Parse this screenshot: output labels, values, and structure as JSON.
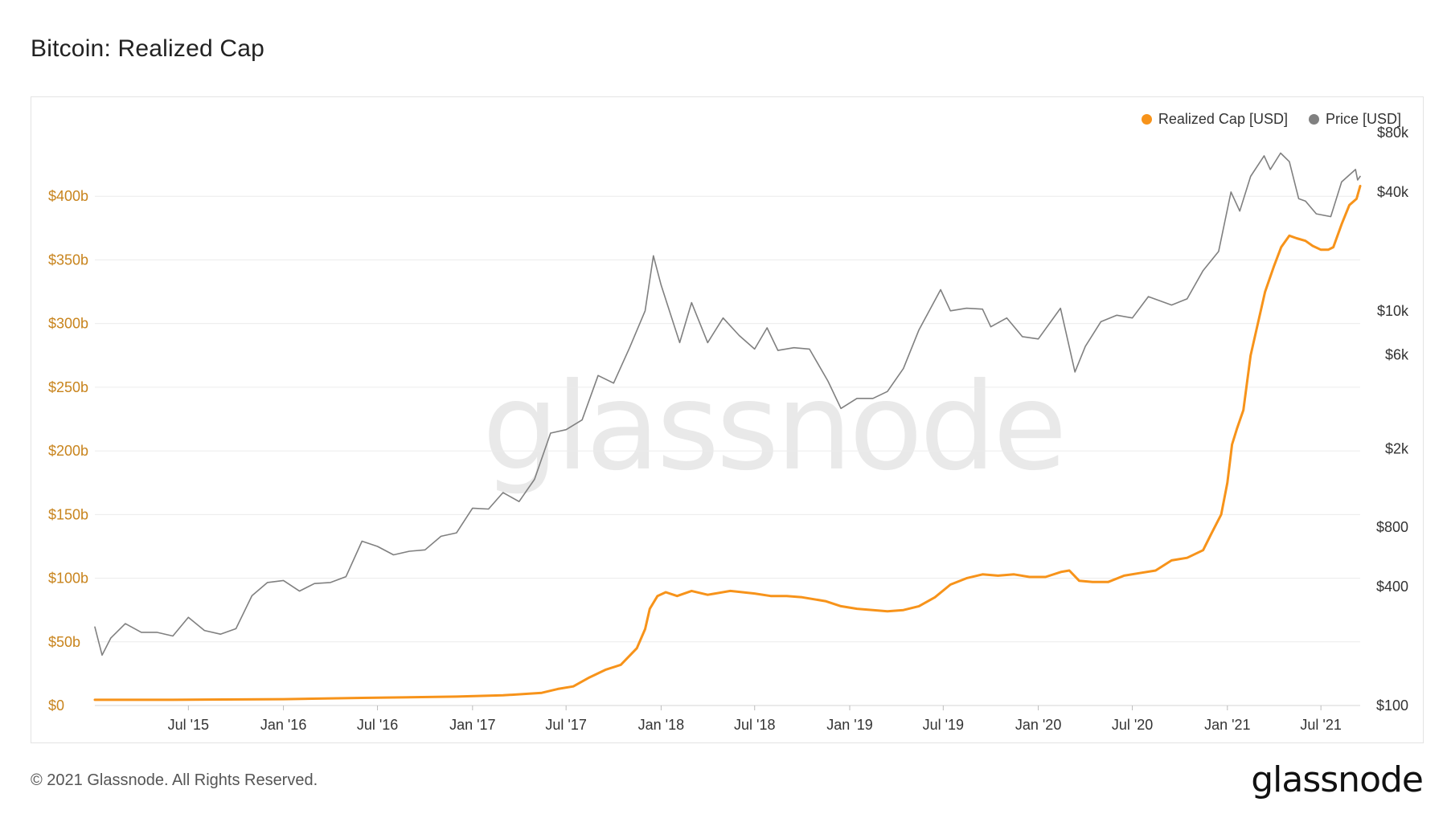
{
  "title": "Bitcoin: Realized Cap",
  "watermark": "glassnode",
  "footer": {
    "copyright": "© 2021 Glassnode. All Rights Reserved.",
    "brand": "glassnode"
  },
  "colors": {
    "realized_cap": "#f7931a",
    "price": "#808080",
    "left_axis_text": "#c8841d",
    "grid": "#ececec"
  },
  "chart_data": {
    "type": "line",
    "legend_position": "top-right",
    "grid": true,
    "x_ticks": [
      "Jul '15",
      "Jan '16",
      "Jul '16",
      "Jan '17",
      "Jul '17",
      "Jan '18",
      "Jul '18",
      "Jan '19",
      "Jul '19",
      "Jan '20",
      "Jul '20",
      "Jan '21",
      "Jul '21"
    ],
    "x_tick_dates": [
      "2015-07-01",
      "2016-01-01",
      "2016-07-01",
      "2017-01-01",
      "2017-07-01",
      "2018-01-01",
      "2018-07-01",
      "2019-01-01",
      "2019-07-01",
      "2020-01-01",
      "2020-07-01",
      "2021-01-01",
      "2021-07-01"
    ],
    "xlim": [
      "2015-01-01",
      "2021-09-15"
    ],
    "y_left": {
      "scale": "linear",
      "ylim": [
        0,
        450
      ],
      "ticks": [
        0,
        50,
        100,
        150,
        200,
        250,
        300,
        350,
        400
      ],
      "tick_labels": [
        "$0",
        "$50b",
        "$100b",
        "$150b",
        "$200b",
        "$250b",
        "$300b",
        "$350b",
        "$400b"
      ]
    },
    "y_right": {
      "scale": "log",
      "ylim": [
        100,
        80000
      ],
      "ticks": [
        100,
        400,
        800,
        2000,
        6000,
        10000,
        40000,
        80000
      ],
      "tick_labels": [
        "$100",
        "$400",
        "$800",
        "$2k",
        "$6k",
        "$10k",
        "$40k",
        "$80k"
      ]
    },
    "series": [
      {
        "name": "Realized Cap [USD]",
        "axis": "left",
        "color": "#f7931a",
        "points": [
          [
            "2015-01-01",
            4.5
          ],
          [
            "2015-06-01",
            4.5
          ],
          [
            "2016-01-01",
            5
          ],
          [
            "2016-06-01",
            6
          ],
          [
            "2016-12-01",
            7
          ],
          [
            "2017-03-01",
            8
          ],
          [
            "2017-05-15",
            10
          ],
          [
            "2017-06-15",
            13
          ],
          [
            "2017-07-15",
            15
          ],
          [
            "2017-08-15",
            22
          ],
          [
            "2017-09-15",
            28
          ],
          [
            "2017-10-15",
            32
          ],
          [
            "2017-11-15",
            45
          ],
          [
            "2017-12-01",
            60
          ],
          [
            "2017-12-10",
            76
          ],
          [
            "2017-12-25",
            86
          ],
          [
            "2018-01-10",
            89
          ],
          [
            "2018-02-01",
            86
          ],
          [
            "2018-03-01",
            90
          ],
          [
            "2018-04-01",
            87
          ],
          [
            "2018-05-15",
            90
          ],
          [
            "2018-07-01",
            88
          ],
          [
            "2018-08-01",
            86
          ],
          [
            "2018-09-01",
            86
          ],
          [
            "2018-10-01",
            85
          ],
          [
            "2018-11-15",
            82
          ],
          [
            "2018-12-15",
            78
          ],
          [
            "2019-01-15",
            76
          ],
          [
            "2019-02-15",
            75
          ],
          [
            "2019-03-15",
            74
          ],
          [
            "2019-04-15",
            75
          ],
          [
            "2019-05-15",
            78
          ],
          [
            "2019-06-15",
            85
          ],
          [
            "2019-07-15",
            95
          ],
          [
            "2019-08-15",
            100
          ],
          [
            "2019-09-15",
            103
          ],
          [
            "2019-10-15",
            102
          ],
          [
            "2019-11-15",
            103
          ],
          [
            "2019-12-15",
            101
          ],
          [
            "2020-01-15",
            101
          ],
          [
            "2020-02-15",
            105
          ],
          [
            "2020-03-01",
            106
          ],
          [
            "2020-03-20",
            98
          ],
          [
            "2020-04-15",
            97
          ],
          [
            "2020-05-15",
            97
          ],
          [
            "2020-06-15",
            102
          ],
          [
            "2020-07-15",
            104
          ],
          [
            "2020-08-15",
            106
          ],
          [
            "2020-09-15",
            114
          ],
          [
            "2020-10-15",
            116
          ],
          [
            "2020-11-15",
            122
          ],
          [
            "2020-12-01",
            135
          ],
          [
            "2020-12-20",
            150
          ],
          [
            "2021-01-01",
            175
          ],
          [
            "2021-01-10",
            205
          ],
          [
            "2021-01-20",
            218
          ],
          [
            "2021-02-01",
            232
          ],
          [
            "2021-02-15",
            275
          ],
          [
            "2021-03-01",
            300
          ],
          [
            "2021-03-15",
            325
          ],
          [
            "2021-04-01",
            345
          ],
          [
            "2021-04-15",
            360
          ],
          [
            "2021-05-01",
            369
          ],
          [
            "2021-05-15",
            367
          ],
          [
            "2021-06-01",
            365
          ],
          [
            "2021-06-15",
            361
          ],
          [
            "2021-07-01",
            358
          ],
          [
            "2021-07-15",
            358
          ],
          [
            "2021-07-25",
            360
          ],
          [
            "2021-08-10",
            378
          ],
          [
            "2021-08-25",
            393
          ],
          [
            "2021-09-08",
            398
          ],
          [
            "2021-09-15",
            408
          ]
        ]
      },
      {
        "name": "Price [USD]",
        "axis": "right",
        "color": "#808080",
        "points": [
          [
            "2015-01-01",
            250
          ],
          [
            "2015-01-15",
            180
          ],
          [
            "2015-02-01",
            220
          ],
          [
            "2015-03-01",
            260
          ],
          [
            "2015-04-01",
            235
          ],
          [
            "2015-05-01",
            235
          ],
          [
            "2015-06-01",
            225
          ],
          [
            "2015-07-01",
            280
          ],
          [
            "2015-08-01",
            240
          ],
          [
            "2015-09-01",
            230
          ],
          [
            "2015-10-01",
            245
          ],
          [
            "2015-11-01",
            360
          ],
          [
            "2015-12-01",
            420
          ],
          [
            "2016-01-01",
            430
          ],
          [
            "2016-02-01",
            380
          ],
          [
            "2016-03-01",
            415
          ],
          [
            "2016-04-01",
            420
          ],
          [
            "2016-05-01",
            450
          ],
          [
            "2016-06-01",
            680
          ],
          [
            "2016-07-01",
            640
          ],
          [
            "2016-08-01",
            580
          ],
          [
            "2016-09-01",
            605
          ],
          [
            "2016-10-01",
            615
          ],
          [
            "2016-11-01",
            720
          ],
          [
            "2016-12-01",
            750
          ],
          [
            "2017-01-01",
            1000
          ],
          [
            "2017-02-01",
            990
          ],
          [
            "2017-03-01",
            1200
          ],
          [
            "2017-04-01",
            1080
          ],
          [
            "2017-05-01",
            1400
          ],
          [
            "2017-06-01",
            2400
          ],
          [
            "2017-07-01",
            2500
          ],
          [
            "2017-08-01",
            2800
          ],
          [
            "2017-09-01",
            4700
          ],
          [
            "2017-10-01",
            4300
          ],
          [
            "2017-11-01",
            6500
          ],
          [
            "2017-12-01",
            10000
          ],
          [
            "2017-12-17",
            19000
          ],
          [
            "2018-01-01",
            13500
          ],
          [
            "2018-02-06",
            6900
          ],
          [
            "2018-03-01",
            11000
          ],
          [
            "2018-04-01",
            6900
          ],
          [
            "2018-05-01",
            9200
          ],
          [
            "2018-06-01",
            7500
          ],
          [
            "2018-07-01",
            6400
          ],
          [
            "2018-07-25",
            8200
          ],
          [
            "2018-08-15",
            6300
          ],
          [
            "2018-09-15",
            6500
          ],
          [
            "2018-10-15",
            6400
          ],
          [
            "2018-11-20",
            4400
          ],
          [
            "2018-12-15",
            3200
          ],
          [
            "2019-01-15",
            3600
          ],
          [
            "2019-02-15",
            3600
          ],
          [
            "2019-03-15",
            3900
          ],
          [
            "2019-04-15",
            5100
          ],
          [
            "2019-05-15",
            8000
          ],
          [
            "2019-06-26",
            12800
          ],
          [
            "2019-07-15",
            10000
          ],
          [
            "2019-08-15",
            10300
          ],
          [
            "2019-09-15",
            10200
          ],
          [
            "2019-10-01",
            8300
          ],
          [
            "2019-11-01",
            9200
          ],
          [
            "2019-12-01",
            7400
          ],
          [
            "2020-01-01",
            7200
          ],
          [
            "2020-02-13",
            10300
          ],
          [
            "2020-03-12",
            4900
          ],
          [
            "2020-04-01",
            6600
          ],
          [
            "2020-05-01",
            8800
          ],
          [
            "2020-06-01",
            9500
          ],
          [
            "2020-07-01",
            9200
          ],
          [
            "2020-08-01",
            11800
          ],
          [
            "2020-09-15",
            10700
          ],
          [
            "2020-10-15",
            11500
          ],
          [
            "2020-11-15",
            16000
          ],
          [
            "2020-12-15",
            20000
          ],
          [
            "2021-01-08",
            40000
          ],
          [
            "2021-01-25",
            32000
          ],
          [
            "2021-02-15",
            48000
          ],
          [
            "2021-03-13",
            61000
          ],
          [
            "2021-03-25",
            52000
          ],
          [
            "2021-04-14",
            63000
          ],
          [
            "2021-05-01",
            57000
          ],
          [
            "2021-05-19",
            37000
          ],
          [
            "2021-06-01",
            36000
          ],
          [
            "2021-06-22",
            31000
          ],
          [
            "2021-07-20",
            30000
          ],
          [
            "2021-08-10",
            45000
          ],
          [
            "2021-09-06",
            52000
          ],
          [
            "2021-09-10",
            46000
          ],
          [
            "2021-09-15",
            48000
          ]
        ]
      }
    ]
  }
}
